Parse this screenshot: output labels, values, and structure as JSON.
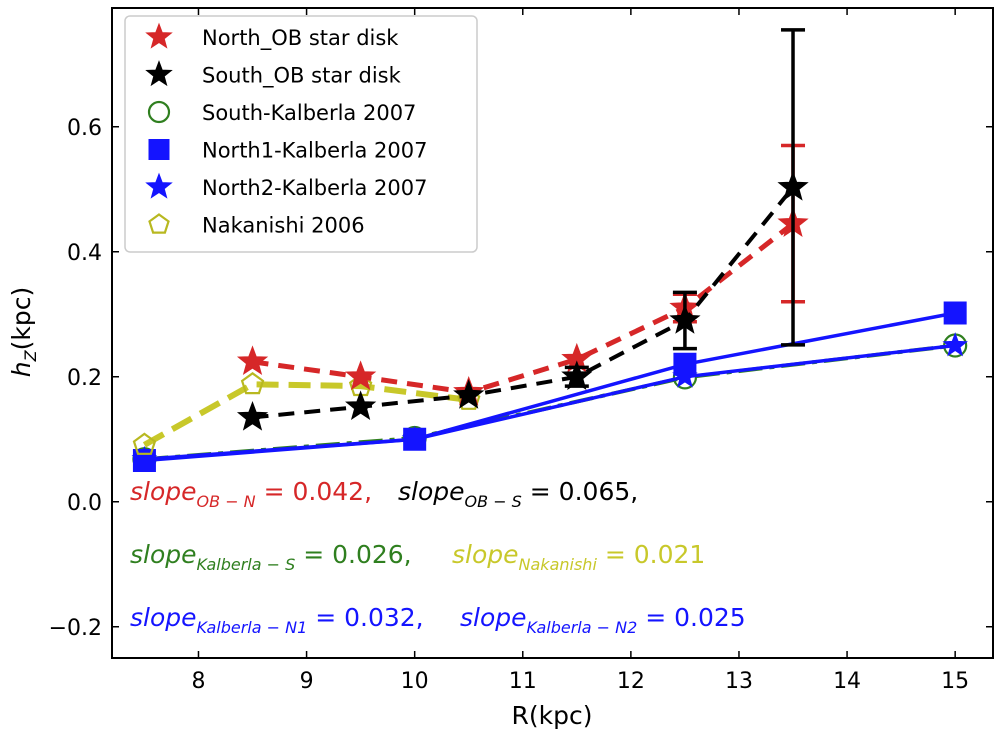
{
  "chart_data": {
    "type": "line",
    "xlabel": "R(kpc)",
    "ylabel": {
      "main": "h",
      "sub": "Z",
      "rest": "(kpc)"
    },
    "xlim": [
      7.2,
      15.35
    ],
    "ylim": [
      -0.25,
      0.79
    ],
    "xticks": [
      8,
      9,
      10,
      11,
      12,
      13,
      14,
      15
    ],
    "yticks": [
      -0.2,
      0.0,
      0.2,
      0.4,
      0.6
    ],
    "ytick_labels": [
      "−0.2",
      "0.0",
      "0.2",
      "0.4",
      "0.6"
    ],
    "legend_position": "upper-left",
    "series": [
      {
        "name": "North_OB star disk",
        "color": "#d62728",
        "marker": "star",
        "markerSize": 15,
        "markerFill": "#d62728",
        "markerStroke": "#d62728",
        "x": [
          8.5,
          9.5,
          10.5,
          11.5,
          12.5,
          13.5
        ],
        "y": [
          0.224,
          0.2,
          0.175,
          0.228,
          0.31,
          0.445
        ],
        "yerr": [
          0,
          0,
          0,
          0,
          0.022,
          0.125
        ],
        "line": {
          "dash": "16,10",
          "width": 5
        }
      },
      {
        "name": "South_OB star disk",
        "color": "#000000",
        "marker": "star",
        "markerSize": 15,
        "markerFill": "#000000",
        "markerStroke": "#000000",
        "x": [
          8.5,
          9.5,
          10.5,
          11.5,
          12.5,
          13.5
        ],
        "y": [
          0.135,
          0.152,
          0.17,
          0.2,
          0.29,
          0.503
        ],
        "yerr": [
          0,
          0,
          0,
          0.015,
          0.045,
          0.252
        ],
        "line": {
          "dash": "16,10",
          "width": 4
        }
      },
      {
        "name": "South-Kalberla 2007",
        "color": "#2f7f1f",
        "marker": "circle",
        "markerSize": 11,
        "markerFill": "none",
        "markerStroke": "#2f7f1f",
        "x": [
          7.5,
          10.0,
          12.5,
          15.0
        ],
        "y": [
          0.068,
          0.102,
          0.199,
          0.25
        ],
        "line": {
          "dash": "24,7,5,7",
          "width": 4
        }
      },
      {
        "name": "North1-Kalberla 2007",
        "color": "#1414ff",
        "marker": "square",
        "markerSize": 11,
        "markerFill": "#1414ff",
        "markerStroke": "#1414ff",
        "x": [
          7.5,
          10.0,
          12.5,
          15.0
        ],
        "y": [
          0.066,
          0.1,
          0.22,
          0.302
        ],
        "line": {
          "dash": "",
          "width": 3.5
        }
      },
      {
        "name": "North2-Kalberla 2007",
        "color": "#1414ff",
        "marker": "star",
        "markerSize": 12,
        "markerFill": "#1414ff",
        "markerStroke": "#1414ff",
        "x": [
          7.5,
          10.0,
          12.5,
          15.0
        ],
        "y": [
          0.068,
          0.1,
          0.2,
          0.25
        ],
        "line": {
          "dash": "",
          "width": 3.5
        }
      },
      {
        "name": "Nakanishi 2006",
        "color": "#c8c82a",
        "marker": "pentagon",
        "markerSize": 11,
        "markerFill": "none",
        "markerStroke": "#b8b820",
        "x": [
          7.5,
          8.5,
          9.5,
          10.5
        ],
        "y": [
          0.091,
          0.188,
          0.185,
          0.163
        ],
        "line": {
          "dash": "22,10",
          "width": 6
        }
      }
    ],
    "legend": [
      "North_OB star disk",
      "South_OB star disk",
      "South-Kalberla 2007",
      "North1-Kalberla 2007",
      "North2-Kalberla 2007",
      "Nakanishi 2006"
    ],
    "annotations": [
      {
        "id": "ob-n",
        "base": "slope",
        "sub": "OB − N",
        "value": " = 0.042,",
        "color": "#d62728"
      },
      {
        "id": "ob-s",
        "base": "slope",
        "sub": "OB − S",
        "value": " = 0.065,",
        "color": "#000000"
      },
      {
        "id": "kal-s",
        "base": "slope",
        "sub": "Kalberla − S",
        "value": " = 0.026,",
        "color": "#2f7f1f"
      },
      {
        "id": "naka",
        "base": "slope",
        "sub": "Nakanishi",
        "value": " = 0.021",
        "color": "#c8c82a"
      },
      {
        "id": "kal-n1",
        "base": "slope",
        "sub": "Kalberla − N1",
        "value": " = 0.032,",
        "color": "#1414ff"
      },
      {
        "id": "kal-n2",
        "base": "slope",
        "sub": "Kalberla − N2",
        "value": " = 0.025",
        "color": "#1414ff"
      }
    ]
  }
}
